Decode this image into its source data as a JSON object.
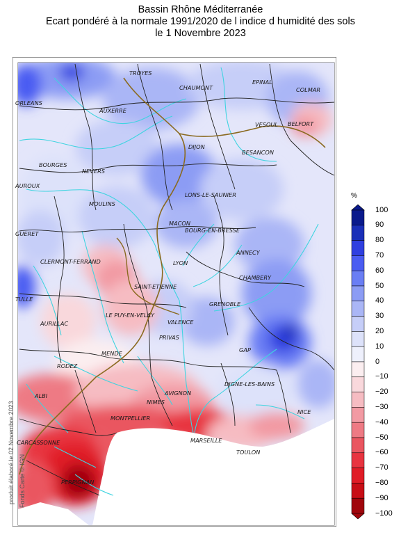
{
  "title_lines": [
    "Bassin Rhône Méditerranée",
    "Ecart pondéré à la normale 1991/2020 de l indice d humidité des sols",
    "le 1 Novembre 2023"
  ],
  "legend": {
    "unit": "%",
    "ticks": [
      "100",
      "90",
      "80",
      "70",
      "60",
      "50",
      "40",
      "30",
      "20",
      "10",
      "0",
      "−10",
      "−20",
      "−30",
      "−40",
      "−50",
      "−60",
      "−70",
      "−80",
      "−90",
      "−100"
    ],
    "colors": [
      "#0a1a8c",
      "#1a2fb8",
      "#2f3fe0",
      "#4a5cf2",
      "#6a7ef4",
      "#8c9cf4",
      "#aab6f6",
      "#c6cef8",
      "#dde2fa",
      "#eef0fc",
      "#fbeef0",
      "#f9d8dc",
      "#f6bcc2",
      "#f29aa3",
      "#ee7a84",
      "#ea5660",
      "#e83440",
      "#e01c26",
      "#c80e16",
      "#a0060c"
    ]
  },
  "cities": [
    {
      "name": "TROYES",
      "c": "#1a1a1a"
    },
    {
      "name": "CHAUMONT",
      "c": "#1a1a1a"
    },
    {
      "name": "EPINAL",
      "c": "#1a1a1a"
    },
    {
      "name": "COLMAR",
      "c": "#1a1a1a"
    },
    {
      "name": "ORLEANS",
      "c": "#1a1a1a"
    },
    {
      "name": "AUXERRE",
      "c": "#1a1a1a"
    },
    {
      "name": "VESOUL",
      "c": "#1a1a1a"
    },
    {
      "name": "BELFORT",
      "c": "#1a1a1a"
    },
    {
      "name": "DIJON",
      "c": "#1a1a1a"
    },
    {
      "name": "BESANCON",
      "c": "#1a1a1a"
    },
    {
      "name": "BOURGES",
      "c": "#1a1a1a"
    },
    {
      "name": "NEVERS",
      "c": "#1a1a1a"
    },
    {
      "name": "LONS-LE-SAUNIER",
      "c": "#1a1a1a"
    },
    {
      "name": "AUROUX",
      "c": "#1a1a1a"
    },
    {
      "name": "MOULINS",
      "c": "#1a1a1a"
    },
    {
      "name": "MACON",
      "c": "#1a1a1a"
    },
    {
      "name": "BOURG-EN-BRESSE",
      "c": "#1a1a1a"
    },
    {
      "name": "GUERET",
      "c": "#1a1a1a"
    },
    {
      "name": "ANNECY",
      "c": "#1a1a1a"
    },
    {
      "name": "CLERMONT-FERRAND",
      "c": "#1a1a1a"
    },
    {
      "name": "LYON",
      "c": "#1a1a1a"
    },
    {
      "name": "CHAMBERY",
      "c": "#1a1a1a"
    },
    {
      "name": "SAINT-ETIENNE",
      "c": "#1a1a1a"
    },
    {
      "name": "TULLE",
      "c": "#1a1a1a"
    },
    {
      "name": "GRENOBLE",
      "c": "#1a1a1a"
    },
    {
      "name": "LE PUY-EN-VELAY",
      "c": "#1a1a1a"
    },
    {
      "name": "AURILLAC",
      "c": "#1a1a1a"
    },
    {
      "name": "VALENCE",
      "c": "#1a1a1a"
    },
    {
      "name": "PRIVAS",
      "c": "#1a1a1a"
    },
    {
      "name": "GAP",
      "c": "#1a1a1a"
    },
    {
      "name": "MENDE",
      "c": "#1a1a1a"
    },
    {
      "name": "RODEZ",
      "c": "#1a1a1a"
    },
    {
      "name": "DIGNE-LES-BAINS",
      "c": "#1a1a1a"
    },
    {
      "name": "ALBI",
      "c": "#1a1a1a"
    },
    {
      "name": "AVIGNON",
      "c": "#1a1a1a"
    },
    {
      "name": "NIMES",
      "c": "#1a1a1a"
    },
    {
      "name": "NICE",
      "c": "#1a1a1a"
    },
    {
      "name": "MONTPELLIER",
      "c": "#1a1a1a"
    },
    {
      "name": "MARSEILLE",
      "c": "#1a1a1a"
    },
    {
      "name": "CARCASSONNE",
      "c": "#1a1a1a"
    },
    {
      "name": "TOULON",
      "c": "#1a1a1a"
    },
    {
      "name": "PERPIGNAN",
      "c": "#1a1a1a"
    }
  ],
  "credits": {
    "produced": "produit élaboré le 02 Novembre 2023",
    "fonds": "Fonds Carte © IGN"
  }
}
